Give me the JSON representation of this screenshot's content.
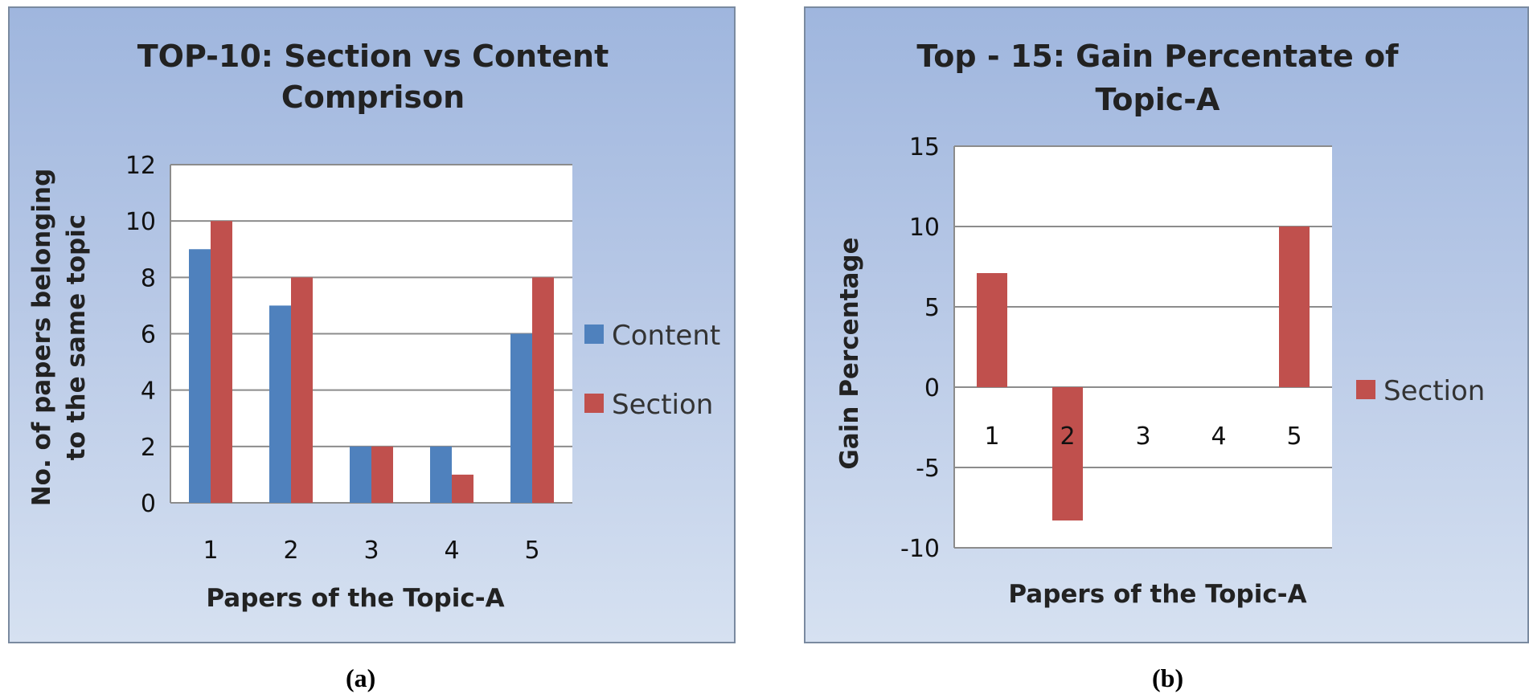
{
  "chart_data": [
    {
      "type": "bar",
      "title": "TOP-10: Section vs Content Comprison",
      "title_lines": [
        "TOP-10: Section vs Content",
        "Comprison"
      ],
      "xlabel": "Papers of the Topic-A",
      "ylabel": "No. of papers belonging to the same topic",
      "ylabel_lines": [
        "No. of papers belonging",
        "to the same topic"
      ],
      "categories": [
        "1",
        "2",
        "3",
        "4",
        "5"
      ],
      "series": [
        {
          "name": "Content",
          "values": [
            9,
            7,
            2,
            2,
            6
          ],
          "color": "#4f81bd"
        },
        {
          "name": "Section",
          "values": [
            10,
            8,
            2,
            1,
            8
          ],
          "color": "#c0504d"
        }
      ],
      "ylim": [
        0,
        12
      ],
      "yticks": [
        "0",
        "2",
        "4",
        "6",
        "8",
        "10",
        "12"
      ],
      "grid": true,
      "legend": "right",
      "caption": "(a)"
    },
    {
      "type": "bar",
      "title": "Top - 15: Gain Percentate of Topic-A",
      "title_lines": [
        "Top - 15: Gain Percentate of",
        "Topic-A"
      ],
      "xlabel": "Papers of the Topic-A",
      "ylabel": "Gain  Percentage",
      "categories": [
        "1",
        "2",
        "3",
        "4",
        "5"
      ],
      "series": [
        {
          "name": "Section",
          "values": [
            7.1,
            -8.3,
            0,
            0,
            10
          ],
          "color": "#c0504d"
        }
      ],
      "ylim": [
        -10,
        15
      ],
      "yticks": [
        "-10",
        "-5",
        "0",
        "5",
        "10",
        "15"
      ],
      "grid": true,
      "legend": "right",
      "caption": "(b)"
    }
  ]
}
